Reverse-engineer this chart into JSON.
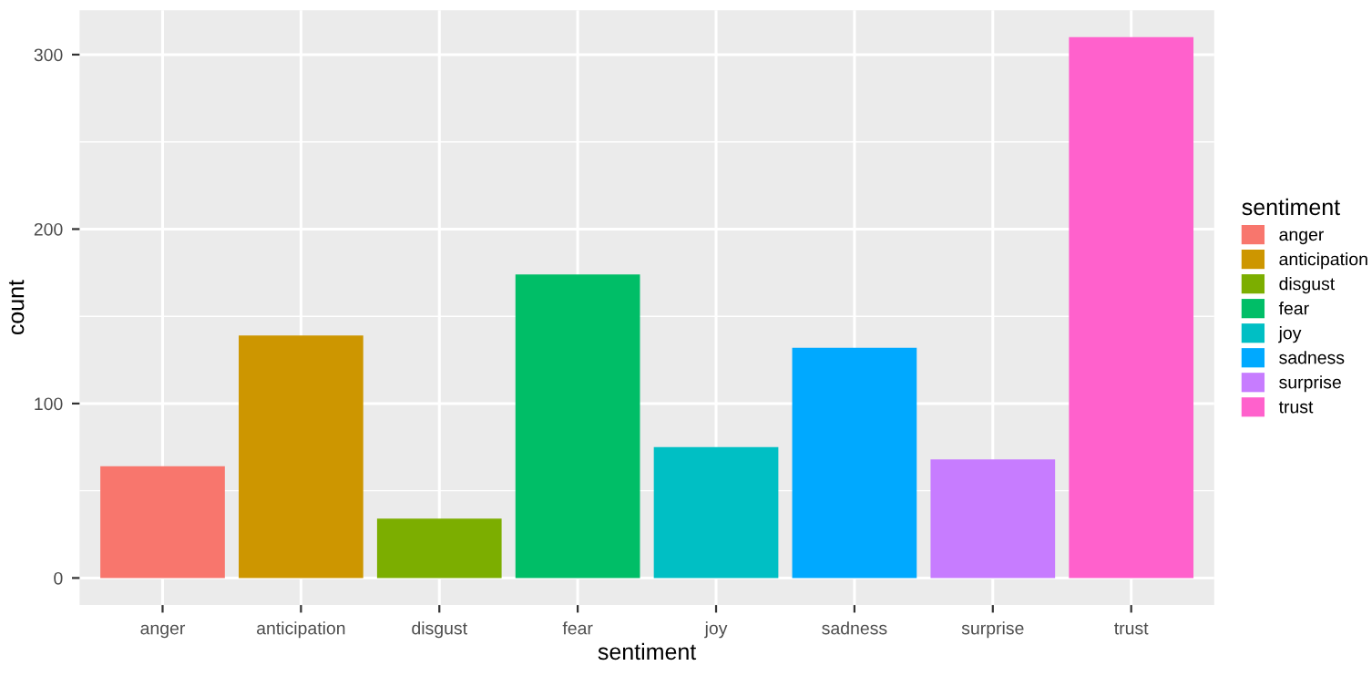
{
  "chart_data": {
    "type": "bar",
    "xlabel": "sentiment",
    "ylabel": "count",
    "legend_title": "sentiment",
    "categories": [
      "anger",
      "anticipation",
      "disgust",
      "fear",
      "joy",
      "sadness",
      "surprise",
      "trust"
    ],
    "series": [
      {
        "name": "anger",
        "color": "#f8766d",
        "values": [
          64,
          null,
          null,
          null,
          null,
          null,
          null,
          null
        ]
      },
      {
        "name": "anticipation",
        "color": "#cd9600",
        "values": [
          null,
          139,
          null,
          null,
          null,
          null,
          null,
          null
        ]
      },
      {
        "name": "disgust",
        "color": "#7cae00",
        "values": [
          null,
          null,
          34,
          null,
          null,
          null,
          null,
          null
        ]
      },
      {
        "name": "fear",
        "color": "#00be67",
        "values": [
          null,
          null,
          null,
          174,
          null,
          null,
          null,
          null
        ]
      },
      {
        "name": "joy",
        "color": "#00bfc4",
        "values": [
          null,
          null,
          null,
          null,
          75,
          null,
          null,
          null
        ]
      },
      {
        "name": "sadness",
        "color": "#00a9ff",
        "values": [
          null,
          null,
          null,
          null,
          null,
          132,
          null,
          null
        ]
      },
      {
        "name": "surprise",
        "color": "#c77cff",
        "values": [
          null,
          null,
          null,
          null,
          null,
          null,
          68,
          null
        ]
      },
      {
        "name": "trust",
        "color": "#ff61cc",
        "values": [
          null,
          null,
          null,
          null,
          null,
          null,
          null,
          310
        ]
      }
    ],
    "ylim": [
      -15.5,
      325.5
    ],
    "yticks": [
      0,
      100,
      200,
      300
    ],
    "grid": true,
    "legend": "right"
  }
}
